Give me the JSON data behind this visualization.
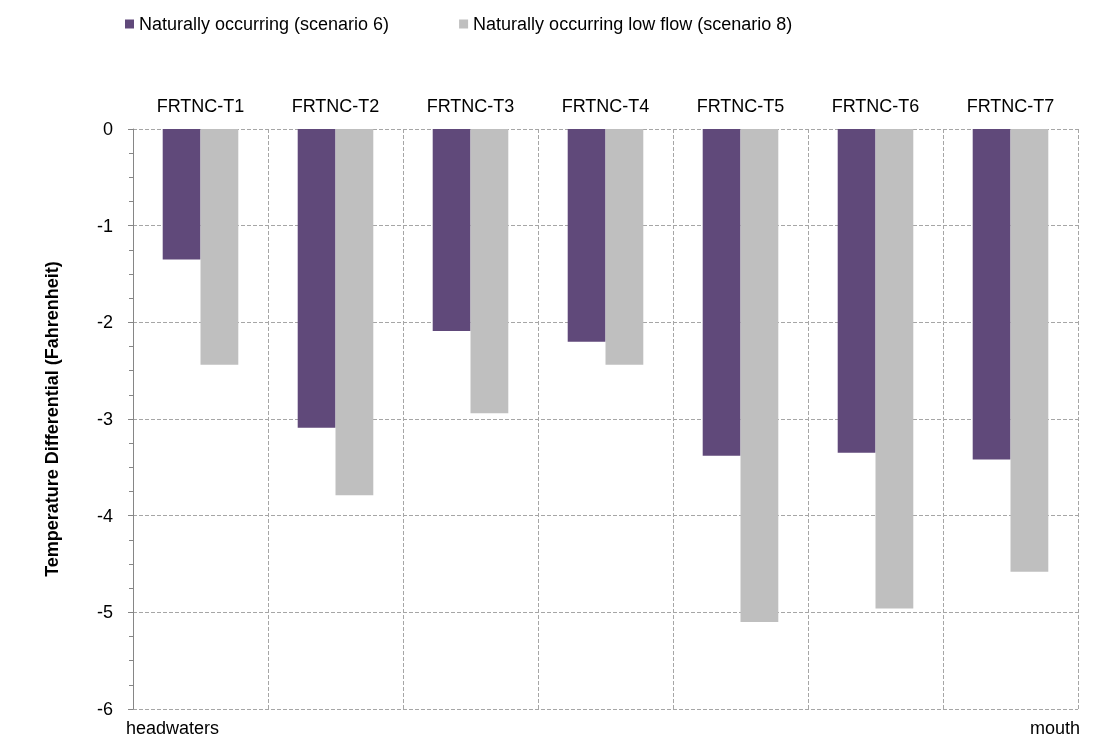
{
  "chart_data": {
    "type": "bar",
    "ylabel": "Temperature Differential (Fahrenheit)",
    "categories": [
      "FRTNC-T1",
      "FRTNC-T2",
      "FRTNC-T3",
      "FRTNC-T4",
      "FRTNC-T5",
      "FRTNC-T6",
      "FRTNC-T7"
    ],
    "series": [
      {
        "name": "Naturally occurring (scenario 6)",
        "color": "#60497a",
        "values": [
          -1.35,
          -3.09,
          -2.09,
          -2.2,
          -3.38,
          -3.35,
          -3.42
        ]
      },
      {
        "name": "Naturally occurring low flow (scenario 8)",
        "color": "#bfbfbf",
        "values": [
          -2.44,
          -3.79,
          -2.94,
          -2.44,
          -5.1,
          -4.96,
          -4.58
        ]
      }
    ],
    "ylim": [
      -6,
      0
    ],
    "yticks": [
      -6,
      -5,
      -4,
      -3,
      -2,
      -1,
      0
    ],
    "grid": true,
    "legend": "top left",
    "annotations": [
      "headwaters",
      "mouth"
    ]
  }
}
